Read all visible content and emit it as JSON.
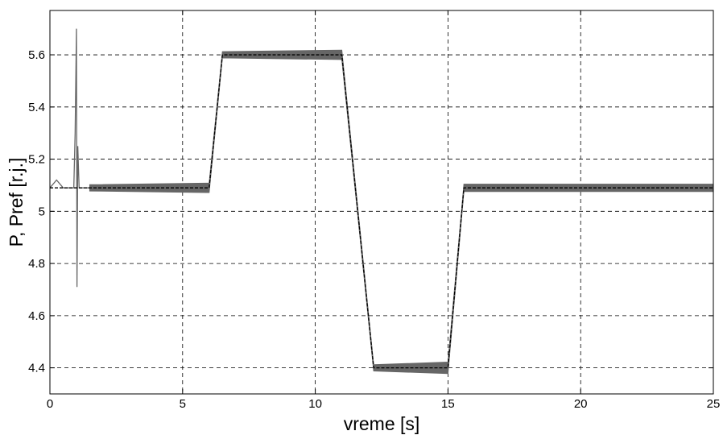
{
  "chart_data": {
    "type": "line",
    "title": "",
    "xlabel": "vreme [s]",
    "ylabel": "P, Pref [r.j.]",
    "xlim": [
      0,
      25
    ],
    "ylim": [
      4.3,
      5.77
    ],
    "xticks": [
      0,
      5,
      10,
      15,
      20,
      25
    ],
    "yticks": [
      4.4,
      4.6,
      4.8,
      5,
      5.2,
      5.4,
      5.6
    ],
    "xtick_labels": [
      "0",
      "5",
      "10",
      "15",
      "20",
      "25"
    ],
    "ytick_labels": [
      "4.4",
      "4.6",
      "4.8",
      "5",
      "5.2",
      "5.4",
      "5.6"
    ],
    "grid": true,
    "legend": "none",
    "series": [
      {
        "role": "measured power (oscillating band)",
        "color": "#666666",
        "x": [
          0,
          0.25,
          0.5,
          0.9,
          0.95,
          1.0,
          1.02,
          1.05,
          1.1,
          1.2,
          1.5,
          6.0,
          6.5,
          11.0,
          12.2,
          15.0,
          15.6,
          25.0
        ],
        "y": [
          5.09,
          5.12,
          5.09,
          5.09,
          5.3,
          5.7,
          4.71,
          5.25,
          5.09,
          5.09,
          5.09,
          5.09,
          5.6,
          5.6,
          4.4,
          4.4,
          5.09,
          5.09
        ],
        "band_halfwidth": [
          0,
          0,
          0,
          0,
          0,
          0,
          0,
          0,
          0,
          0,
          0.012,
          0.018,
          0.012,
          0.018,
          0.012,
          0.022,
          0.014,
          0.014
        ]
      },
      {
        "role": "reference power (dashed)",
        "color": "#000000",
        "dashed": true,
        "x": [
          0,
          6.0,
          6.5,
          11.0,
          12.2,
          15.0,
          15.6,
          25.0
        ],
        "y": [
          5.09,
          5.09,
          5.6,
          5.6,
          4.4,
          4.4,
          5.09,
          5.09
        ]
      }
    ]
  }
}
